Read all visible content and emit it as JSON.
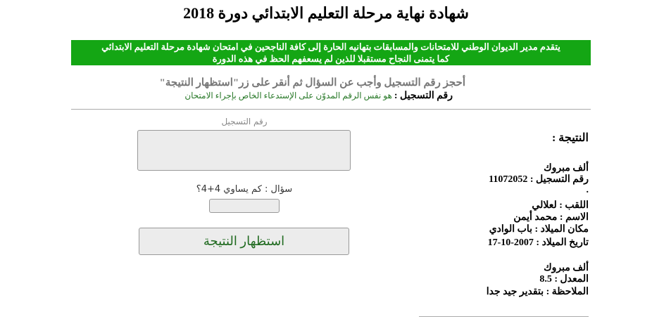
{
  "header": {
    "title": "شهادة نهاية مرحلة التعليم الابتدائي دورة 2018"
  },
  "banner": {
    "lines": [
      "يتقدم مدير الديوان الوطني للامتحانات والمسابقات بتهانيه الحارة إلى كافة الناجحين في امتحان شهادة مرحلة التعليم الابتدائي",
      "كما يتمنى النجاح مستقبلا للذين لم يسعفهم الحظ في هذه الدورة"
    ]
  },
  "instructions": {
    "text": "أحجز رقم التسجيل وأجب عن السؤال ثم أنقر على زر\"استظهار النتيجة\"",
    "note_label": "رقم التسجيل :",
    "note_text": "هو نفس الرقم المدوّن على الإستدعاء الخاص بإجراء الامتحان"
  },
  "form": {
    "registration_label": "رقم التسجيل",
    "question": "سؤال : كم يساوي 4+4؟",
    "button": "استظهار النتيجة"
  },
  "result": {
    "heading": "النتيجة :",
    "lines": [
      "ألف مبروك",
      "رقم التسجيل : 11072052",
      ".",
      "اللقب : لعلالي",
      "الاسم : محمد أيمن",
      "مكان الميلاد : باب الوادي",
      "تاريخ الميلاد : 2007-10-17",
      "ألف مبروك",
      "المعدل : 8.5",
      "الملاحظة : بتقدير جيد جدا"
    ]
  }
}
